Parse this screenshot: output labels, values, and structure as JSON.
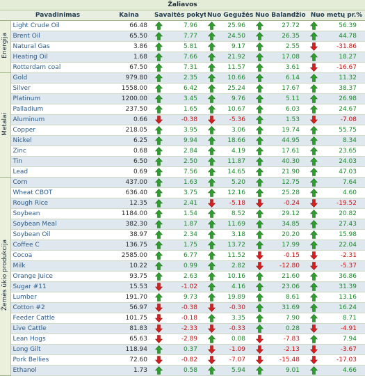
{
  "title": "Žaliavos",
  "headers": {
    "name": "Pavadinimas",
    "price": "Kaina",
    "week": "Savaitės pokytis %",
    "may": "Nuo Gegužės %",
    "april": "Nuo Balandžio %",
    "ytd": "Nuo metų pr.%"
  },
  "colors": {
    "up": "#2e9e2e",
    "down": "#d42020",
    "row_alt": "#dfe8ee",
    "header_bg": "#e9efe0"
  },
  "groups": [
    {
      "label": "Energija",
      "rows": [
        {
          "name": "Light Crude Oil",
          "price": "66.48",
          "week": "7.96",
          "may": "25.96",
          "april": "27.72",
          "ytd": "56.39"
        },
        {
          "name": "Brent Oil",
          "price": "65.50",
          "week": "7.77",
          "may": "24.50",
          "april": "26.35",
          "ytd": "44.78"
        },
        {
          "name": "Natural Gas",
          "price": "3.86",
          "week": "5.81",
          "may": "9.17",
          "april": "2.55",
          "ytd": "-31.86"
        },
        {
          "name": "Heating Oil",
          "price": "1.68",
          "week": "7.66",
          "may": "21.92",
          "april": "17.08",
          "ytd": "18.27"
        },
        {
          "name": "Rotterdam coal",
          "price": "67.50",
          "week": "7.31",
          "may": "11.57",
          "april": "3.61",
          "ytd": "-16.67"
        }
      ]
    },
    {
      "label": "Metalai",
      "rows": [
        {
          "name": "Gold",
          "price": "979.80",
          "week": "2.35",
          "may": "10.66",
          "april": "6.14",
          "ytd": "11.32"
        },
        {
          "name": "Silver",
          "price": "1558.00",
          "week": "6.42",
          "may": "25.24",
          "april": "17.67",
          "ytd": "38.37"
        },
        {
          "name": "Platinum",
          "price": "1200.00",
          "week": "3.45",
          "may": "9.76",
          "april": "5.11",
          "ytd": "26.98"
        },
        {
          "name": "Palladium",
          "price": "237.50",
          "week": "1.65",
          "may": "10.67",
          "april": "6.03",
          "ytd": "24.67"
        },
        {
          "name": "Aluminum",
          "price": "0.66",
          "week": "-0.38",
          "may": "-5.36",
          "april": "1.53",
          "ytd": "-7.08"
        },
        {
          "name": "Copper",
          "price": "218.05",
          "week": "3.95",
          "may": "3.06",
          "april": "19.74",
          "ytd": "55.75"
        },
        {
          "name": "Nickel",
          "price": "6.25",
          "week": "9.94",
          "may": "18.66",
          "april": "44.95",
          "ytd": "8.34"
        },
        {
          "name": "Zinc",
          "price": "0.68",
          "week": "2.84",
          "may": "4.19",
          "april": "17.61",
          "ytd": "23.65"
        },
        {
          "name": "Tin",
          "price": "6.50",
          "week": "2.50",
          "may": "11.87",
          "april": "40.30",
          "ytd": "24.03"
        },
        {
          "name": "Lead",
          "price": "0.69",
          "week": "7.56",
          "may": "14.65",
          "april": "21.90",
          "ytd": "47.03"
        }
      ]
    },
    {
      "label": "Žemės ūkio produkcija",
      "rows": [
        {
          "name": "Corn",
          "price": "437.00",
          "week": "1.63",
          "may": "5.20",
          "april": "12.75",
          "ytd": "7.64"
        },
        {
          "name": "Wheat CBOT",
          "price": "636.40",
          "week": "3.75",
          "may": "12.16",
          "april": "25.28",
          "ytd": "4.60"
        },
        {
          "name": "Rough Rice",
          "price": "12.35",
          "week": "2.41",
          "may": "-5.18",
          "april": "-0.24",
          "ytd": "-19.52"
        },
        {
          "name": "Soybean",
          "price": "1184.00",
          "week": "1.54",
          "may": "8.52",
          "april": "29.12",
          "ytd": "20.82"
        },
        {
          "name": "Soybean Meal",
          "price": "382.30",
          "week": "1.87",
          "may": "11.69",
          "april": "34.85",
          "ytd": "27.43"
        },
        {
          "name": "Soybean Oil",
          "price": "38.97",
          "week": "2.34",
          "may": "3.18",
          "april": "20.20",
          "ytd": "15.98"
        },
        {
          "name": "Coffee C",
          "price": "136.75",
          "week": "1.75",
          "may": "13.72",
          "april": "17.99",
          "ytd": "22.04"
        },
        {
          "name": "Cocoa",
          "price": "2585.00",
          "week": "6.77",
          "may": "11.52",
          "april": "-0.15",
          "ytd": "-2.31"
        },
        {
          "name": "Milk",
          "price": "10.22",
          "week": "0.99",
          "may": "2.82",
          "april": "-12.80",
          "ytd": "-5.37"
        },
        {
          "name": "Orange Juice",
          "price": "93.75",
          "week": "2.63",
          "may": "10.16",
          "april": "21.60",
          "ytd": "36.86"
        },
        {
          "name": "Sugar #11",
          "price": "15.53",
          "week": "-1.02",
          "may": "4.16",
          "april": "23.06",
          "ytd": "31.39"
        },
        {
          "name": "Lumber",
          "price": "191.70",
          "week": "9.73",
          "may": "19.89",
          "april": "8.61",
          "ytd": "13.16"
        },
        {
          "name": "Cotton #2",
          "price": "56.97",
          "week": "-0.38",
          "may": "-0.30",
          "april": "31.69",
          "ytd": "16.24"
        },
        {
          "name": "Feeder Cattle",
          "price": "101.75",
          "week": "-0.18",
          "may": "3.35",
          "april": "7.90",
          "ytd": "8.71"
        },
        {
          "name": "Live Cattle",
          "price": "81.83",
          "week": "-2.33",
          "may": "-0.33",
          "april": "0.28",
          "ytd": "-4.91"
        },
        {
          "name": "Lean Hogs",
          "price": "65.63",
          "week": "-2.89",
          "may": "0.08",
          "april": "-7.83",
          "ytd": "7.94"
        },
        {
          "name": "Long Gilt",
          "price": "118.94",
          "week": "0.37",
          "may": "-1.09",
          "april": "-2.13",
          "ytd": "-3.67"
        },
        {
          "name": "Pork Bellies",
          "price": "72.60",
          "week": "-0.82",
          "may": "-7.07",
          "april": "-15.48",
          "ytd": "-17.03"
        },
        {
          "name": "Ethanol",
          "price": "1.73",
          "week": "0.58",
          "may": "5.94",
          "april": "9.01",
          "ytd": "4.66"
        }
      ]
    }
  ]
}
